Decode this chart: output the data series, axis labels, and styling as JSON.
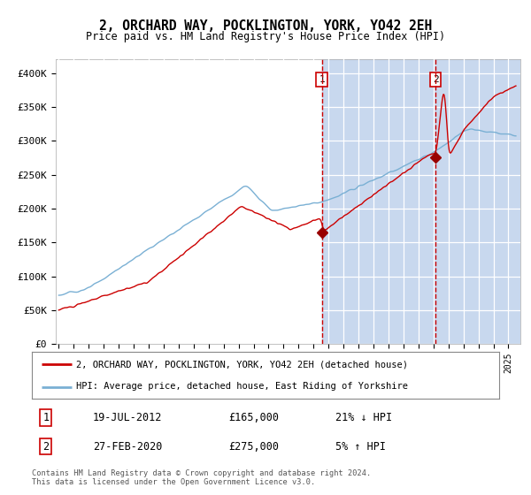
{
  "title": "2, ORCHARD WAY, POCKLINGTON, YORK, YO42 2EH",
  "subtitle": "Price paid vs. HM Land Registry's House Price Index (HPI)",
  "plot_bg_color": "#dde8f5",
  "plot_bg_color_left": "#ffffff",
  "plot_bg_color_right": "#dde8f5",
  "xlabel": "",
  "ylabel": "",
  "ylim": [
    0,
    420000
  ],
  "yticks": [
    0,
    50000,
    100000,
    150000,
    200000,
    250000,
    300000,
    350000,
    400000
  ],
  "ytick_labels": [
    "£0",
    "£50K",
    "£100K",
    "£150K",
    "£200K",
    "£250K",
    "£300K",
    "£350K",
    "£400K"
  ],
  "transaction1_year": 2012.55,
  "transaction1_date": "19-JUL-2012",
  "transaction1_price": 165000,
  "transaction1_hpi": "21% ↓ HPI",
  "transaction2_year": 2020.15,
  "transaction2_date": "27-FEB-2020",
  "transaction2_price": 275000,
  "transaction2_hpi": "5% ↑ HPI",
  "legend1": "2, ORCHARD WAY, POCKLINGTON, YORK, YO42 2EH (detached house)",
  "legend2": "HPI: Average price, detached house, East Riding of Yorkshire",
  "footer": "Contains HM Land Registry data © Crown copyright and database right 2024.\nThis data is licensed under the Open Government Licence v3.0.",
  "line_red_color": "#cc0000",
  "line_blue_color": "#7ab0d4",
  "vline_color": "#cc0000",
  "marker_color": "#990000",
  "shade_color": "#c8d8ee"
}
